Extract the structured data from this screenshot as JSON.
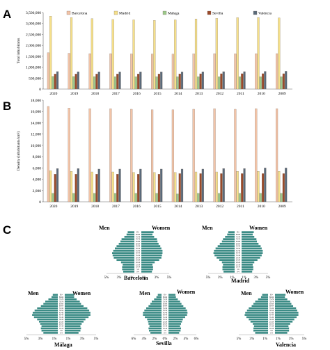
{
  "panel_letters": [
    "A",
    "B",
    "C"
  ],
  "legend": {
    "series": [
      {
        "name": "Barcelona",
        "color": "#f2c4a8"
      },
      {
        "name": "Madrid",
        "color": "#f5e08a"
      },
      {
        "name": "Málaga",
        "color": "#9cc98a"
      },
      {
        "name": "Sevilla",
        "color": "#9a4a2a"
      },
      {
        "name": "València",
        "color": "#5a6a7a"
      }
    ]
  },
  "chart_data": [
    {
      "type": "bar",
      "panel": "A",
      "categories": [
        "2020",
        "2019",
        "2018",
        "2017",
        "2016",
        "2015",
        "2014",
        "2013",
        "2012",
        "2011",
        "2010",
        "2009"
      ],
      "ylabel": "Total inhabitants",
      "ylim": [
        0,
        3500000
      ],
      "yticks": [
        "0",
        "500,000",
        "1,000,000",
        "1,500,000",
        "2,000,000",
        "2,500,000",
        "3,000,000",
        "3,500,000"
      ],
      "grid": false,
      "legend_position": "top",
      "series": [
        {
          "name": "Barcelona",
          "values": [
            1664182,
            1636762,
            1620343,
            1620809,
            1608746,
            1604555,
            1602386,
            1611822,
            1620943,
            1615448,
            1619337,
            1621537
          ]
        },
        {
          "name": "Madrid",
          "values": [
            3334730,
            3266126,
            3223334,
            3182981,
            3165541,
            3141991,
            3165235,
            3207247,
            3233527,
            3265038,
            3273049,
            3255944
          ]
        },
        {
          "name": "Málaga",
          "values": [
            578460,
            574654,
            571026,
            569130,
            569009,
            569130,
            566913,
            568479,
            567433,
            568030,
            568507,
            568305
          ]
        },
        {
          "name": "Sevilla",
          "values": [
            691395,
            688592,
            688711,
            689434,
            690566,
            693878,
            696676,
            700169,
            702355,
            703021,
            704198,
            703206
          ]
        },
        {
          "name": "València",
          "values": [
            800215,
            794288,
            791413,
            787808,
            790201,
            786424,
            786189,
            792303,
            797028,
            797654,
            809267,
            814208
          ]
        }
      ]
    },
    {
      "type": "bar",
      "panel": "B",
      "categories": [
        "2020",
        "2019",
        "2018",
        "2017",
        "2016",
        "2015",
        "2014",
        "2013",
        "2012",
        "2011",
        "2010",
        "2009"
      ],
      "ylabel": "Density (inhabitants/km²)",
      "ylim": [
        0,
        18000
      ],
      "yticks": [
        "0",
        "2,000",
        "4,000",
        "6,000",
        "8,000",
        "10,000",
        "12,000",
        "14,000",
        "16,000",
        "18,000"
      ],
      "grid": false,
      "series": [
        {
          "name": "Barcelona",
          "values": [
            16900,
            16600,
            16500,
            16500,
            16400,
            16300,
            16300,
            16400,
            16500,
            16400,
            16500,
            16500
          ]
        },
        {
          "name": "Madrid",
          "values": [
            5500,
            5400,
            5300,
            5300,
            5200,
            5200,
            5200,
            5300,
            5300,
            5400,
            5400,
            5400
          ]
        },
        {
          "name": "Málaga",
          "values": [
            1500,
            1500,
            1500,
            1500,
            1500,
            1500,
            1400,
            1500,
            1500,
            1500,
            1500,
            1500
          ]
        },
        {
          "name": "Sevilla",
          "values": [
            4900,
            4900,
            4900,
            4900,
            4900,
            4900,
            5000,
            5000,
            5000,
            5000,
            5000,
            5000
          ]
        },
        {
          "name": "València",
          "values": [
            5900,
            5900,
            5800,
            5800,
            5800,
            5800,
            5800,
            5800,
            5900,
            5900,
            6000,
            6000
          ]
        }
      ]
    },
    {
      "type": "bar",
      "panel": "C",
      "orientation": "horizontal",
      "subtype": "population pyramid",
      "age_groups": [
        "0-4",
        "5-9",
        "10-14",
        "15-19",
        "20-24",
        "25-29",
        "30-34",
        "35-39",
        "40-44",
        "45-49",
        "50-54",
        "55-59",
        "60-64",
        "65-69",
        "70-74",
        "75-79",
        "80-84",
        "85+"
      ],
      "sex_labels": {
        "left": "Men",
        "right": "Women"
      },
      "pyramids": [
        {
          "city": "Barcelona",
          "men": [
            2.0,
            2.2,
            2.2,
            2.1,
            2.4,
            3.2,
            3.7,
            3.9,
            4.0,
            3.8,
            3.5,
            3.2,
            2.8,
            2.5,
            2.3,
            1.8,
            1.4,
            1.2
          ],
          "women": [
            1.9,
            2.1,
            2.1,
            2.0,
            2.4,
            3.2,
            3.6,
            3.7,
            3.8,
            3.8,
            3.6,
            3.4,
            3.1,
            2.9,
            2.8,
            2.3,
            2.0,
            2.2
          ],
          "ticks": [
            "5%",
            "3%",
            "1%",
            "1%",
            "3%",
            "5%"
          ]
        },
        {
          "city": "Madrid",
          "men": [
            2.1,
            2.3,
            2.3,
            2.2,
            2.4,
            2.9,
            3.4,
            3.8,
            4.0,
            3.9,
            3.6,
            3.2,
            2.8,
            2.4,
            2.2,
            1.8,
            1.4,
            1.2
          ],
          "women": [
            2.0,
            2.2,
            2.2,
            2.1,
            2.4,
            3.0,
            3.5,
            3.8,
            4.0,
            4.0,
            3.8,
            3.6,
            3.2,
            2.9,
            2.8,
            2.4,
            2.1,
            2.3
          ],
          "ticks": [
            "5%",
            "3%",
            "1%",
            "1%",
            "3%",
            "5%"
          ]
        },
        {
          "city": "Málaga",
          "men": [
            2.3,
            2.6,
            2.7,
            2.6,
            2.8,
            3.0,
            3.3,
            3.8,
            4.1,
            4.0,
            3.7,
            3.3,
            2.7,
            2.3,
            2.0,
            1.5,
            1.0,
            0.8
          ],
          "women": [
            2.2,
            2.5,
            2.6,
            2.5,
            2.7,
            3.0,
            3.3,
            3.8,
            4.1,
            4.1,
            3.9,
            3.6,
            3.0,
            2.6,
            2.4,
            1.9,
            1.5,
            1.5
          ],
          "ticks": [
            "5%",
            "3%",
            "1%",
            "1%",
            "3%",
            "5%"
          ]
        },
        {
          "city": "Sevilla",
          "men": [
            2.4,
            2.7,
            2.8,
            2.6,
            2.8,
            2.9,
            3.1,
            3.6,
            4.0,
            4.0,
            3.7,
            3.3,
            2.8,
            2.4,
            2.1,
            1.6,
            1.1,
            0.8
          ],
          "women": [
            2.3,
            2.6,
            2.7,
            2.5,
            2.7,
            2.9,
            3.1,
            3.6,
            4.0,
            4.1,
            4.0,
            3.7,
            3.2,
            2.8,
            2.5,
            2.0,
            1.6,
            1.5
          ],
          "ticks": [
            "6%",
            "4%",
            "2%",
            "0%",
            "2%",
            "4%",
            "6%"
          ]
        },
        {
          "city": "Valencia",
          "men": [
            2.2,
            2.5,
            2.5,
            2.4,
            2.6,
            3.0,
            3.3,
            3.7,
            4.0,
            3.9,
            3.6,
            3.3,
            2.8,
            2.5,
            2.2,
            1.7,
            1.2,
            1.0
          ],
          "women": [
            2.1,
            2.4,
            2.4,
            2.3,
            2.6,
            3.0,
            3.3,
            3.7,
            4.0,
            4.0,
            3.8,
            3.6,
            3.1,
            2.8,
            2.6,
            2.1,
            1.7,
            1.8
          ],
          "ticks": [
            "5%",
            "3%",
            "1%",
            "1%",
            "3%",
            "5%"
          ]
        }
      ]
    }
  ]
}
